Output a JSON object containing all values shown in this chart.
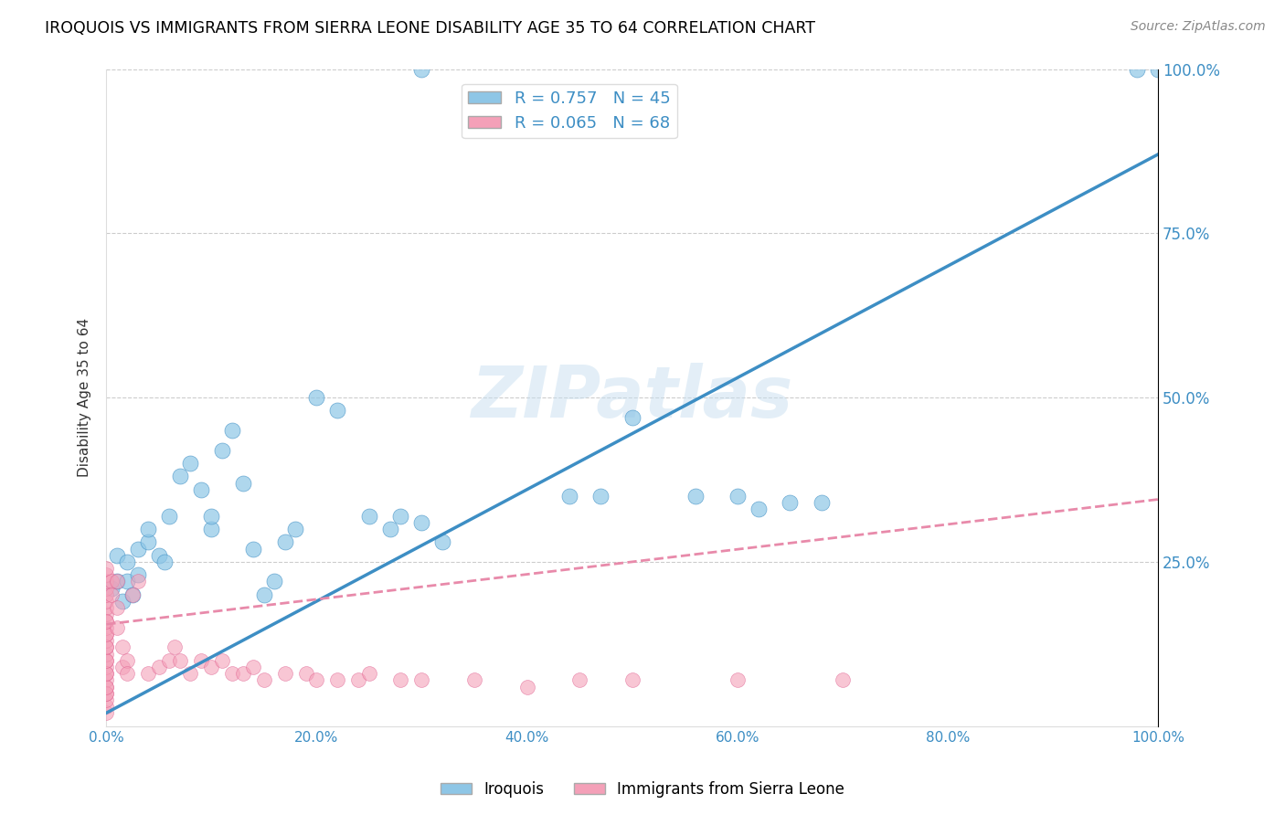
{
  "title": "IROQUOIS VS IMMIGRANTS FROM SIERRA LEONE DISABILITY AGE 35 TO 64 CORRELATION CHART",
  "source": "Source: ZipAtlas.com",
  "ylabel": "Disability Age 35 to 64",
  "watermark": "ZIPatlas",
  "legend_label1": "Iroquois",
  "legend_label2": "Immigrants from Sierra Leone",
  "R1": 0.757,
  "N1": 45,
  "R2": 0.065,
  "N2": 68,
  "color1": "#8ec6e6",
  "color2": "#f4a0b8",
  "color1_dark": "#3d8ec4",
  "color2_dark": "#e06090",
  "line1_color": "#3d8ec4",
  "line2_color": "#e88aaa",
  "xlim": [
    0.0,
    1.0
  ],
  "ylim": [
    0.0,
    1.0
  ],
  "xticks": [
    0.0,
    0.2,
    0.4,
    0.6,
    0.8,
    1.0
  ],
  "yticks": [
    0.0,
    0.25,
    0.5,
    0.75,
    1.0
  ],
  "xticklabels": [
    "0.0%",
    "20.0%",
    "40.0%",
    "60.0%",
    "80.0%",
    "100.0%"
  ],
  "right_yticklabels": [
    "",
    "25.0%",
    "50.0%",
    "75.0%",
    "100.0%"
  ],
  "iroquois_x": [
    0.005,
    0.01,
    0.01,
    0.015,
    0.02,
    0.02,
    0.025,
    0.03,
    0.03,
    0.04,
    0.04,
    0.05,
    0.055,
    0.06,
    0.07,
    0.08,
    0.09,
    0.1,
    0.1,
    0.11,
    0.12,
    0.13,
    0.14,
    0.15,
    0.16,
    0.17,
    0.18,
    0.2,
    0.22,
    0.25,
    0.27,
    0.28,
    0.3,
    0.32,
    0.44,
    0.47,
    0.5,
    0.56,
    0.6,
    0.62,
    0.65,
    0.68,
    0.3,
    0.98,
    1.0
  ],
  "iroquois_y": [
    0.21,
    0.22,
    0.26,
    0.19,
    0.22,
    0.25,
    0.2,
    0.23,
    0.27,
    0.28,
    0.3,
    0.26,
    0.25,
    0.32,
    0.38,
    0.4,
    0.36,
    0.3,
    0.32,
    0.42,
    0.45,
    0.37,
    0.27,
    0.2,
    0.22,
    0.28,
    0.3,
    0.5,
    0.48,
    0.32,
    0.3,
    0.32,
    0.31,
    0.28,
    0.35,
    0.35,
    0.47,
    0.35,
    0.35,
    0.33,
    0.34,
    0.34,
    1.0,
    1.0,
    1.0
  ],
  "sierra_leone_x": [
    0.0,
    0.0,
    0.0,
    0.0,
    0.0,
    0.0,
    0.0,
    0.0,
    0.0,
    0.0,
    0.0,
    0.0,
    0.0,
    0.0,
    0.0,
    0.0,
    0.0,
    0.0,
    0.0,
    0.0,
    0.0,
    0.0,
    0.0,
    0.0,
    0.0,
    0.0,
    0.0,
    0.0,
    0.0,
    0.0,
    0.005,
    0.005,
    0.01,
    0.01,
    0.01,
    0.015,
    0.015,
    0.02,
    0.02,
    0.025,
    0.03,
    0.04,
    0.05,
    0.06,
    0.065,
    0.07,
    0.08,
    0.09,
    0.1,
    0.11,
    0.12,
    0.13,
    0.14,
    0.15,
    0.17,
    0.19,
    0.2,
    0.22,
    0.24,
    0.25,
    0.28,
    0.3,
    0.35,
    0.4,
    0.45,
    0.5,
    0.6,
    0.7
  ],
  "sierra_leone_y": [
    0.02,
    0.03,
    0.04,
    0.05,
    0.06,
    0.07,
    0.08,
    0.09,
    0.1,
    0.11,
    0.12,
    0.13,
    0.14,
    0.15,
    0.16,
    0.17,
    0.18,
    0.19,
    0.2,
    0.21,
    0.22,
    0.23,
    0.24,
    0.05,
    0.06,
    0.08,
    0.1,
    0.12,
    0.14,
    0.16,
    0.22,
    0.2,
    0.22,
    0.18,
    0.15,
    0.12,
    0.09,
    0.1,
    0.08,
    0.2,
    0.22,
    0.08,
    0.09,
    0.1,
    0.12,
    0.1,
    0.08,
    0.1,
    0.09,
    0.1,
    0.08,
    0.08,
    0.09,
    0.07,
    0.08,
    0.08,
    0.07,
    0.07,
    0.07,
    0.08,
    0.07,
    0.07,
    0.07,
    0.06,
    0.07,
    0.07,
    0.07,
    0.07
  ],
  "line1_x0": 0.0,
  "line1_y0": 0.02,
  "line1_x1": 1.0,
  "line1_y1": 0.87,
  "line2_x0": 0.0,
  "line2_y0": 0.155,
  "line2_x1": 1.0,
  "line2_y1": 0.345
}
